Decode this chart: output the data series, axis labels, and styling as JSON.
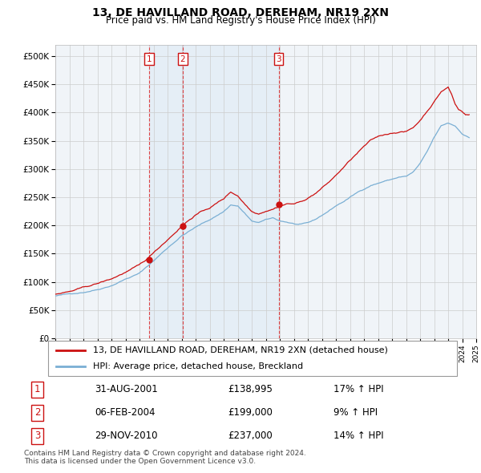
{
  "title": "13, DE HAVILLAND ROAD, DEREHAM, NR19 2XN",
  "subtitle": "Price paid vs. HM Land Registry's House Price Index (HPI)",
  "ylim": [
    0,
    520000
  ],
  "yticks": [
    0,
    50000,
    100000,
    150000,
    200000,
    250000,
    300000,
    350000,
    400000,
    450000,
    500000
  ],
  "ytick_labels": [
    "£0",
    "£50K",
    "£100K",
    "£150K",
    "£200K",
    "£250K",
    "£300K",
    "£350K",
    "£400K",
    "£450K",
    "£500K"
  ],
  "house_color": "#cc1111",
  "hpi_color": "#7aafd4",
  "legend_house": "13, DE HAVILLAND ROAD, DEREHAM, NR19 2XN (detached house)",
  "legend_hpi": "HPI: Average price, detached house, Breckland",
  "transaction_years": [
    2001.667,
    2004.083,
    2010.917
  ],
  "transaction_prices": [
    138995,
    199000,
    237000
  ],
  "vline_color": "#dd3333",
  "shade_color": "#ddeeff",
  "footer": "Contains HM Land Registry data © Crown copyright and database right 2024.\nThis data is licensed under the Open Government Licence v3.0.",
  "table_rows": [
    [
      "1",
      "31-AUG-2001",
      "£138,995",
      "17% ↑ HPI"
    ],
    [
      "2",
      "06-FEB-2004",
      "£199,000",
      "9% ↑ HPI"
    ],
    [
      "3",
      "29-NOV-2010",
      "£237,000",
      "14% ↑ HPI"
    ]
  ]
}
